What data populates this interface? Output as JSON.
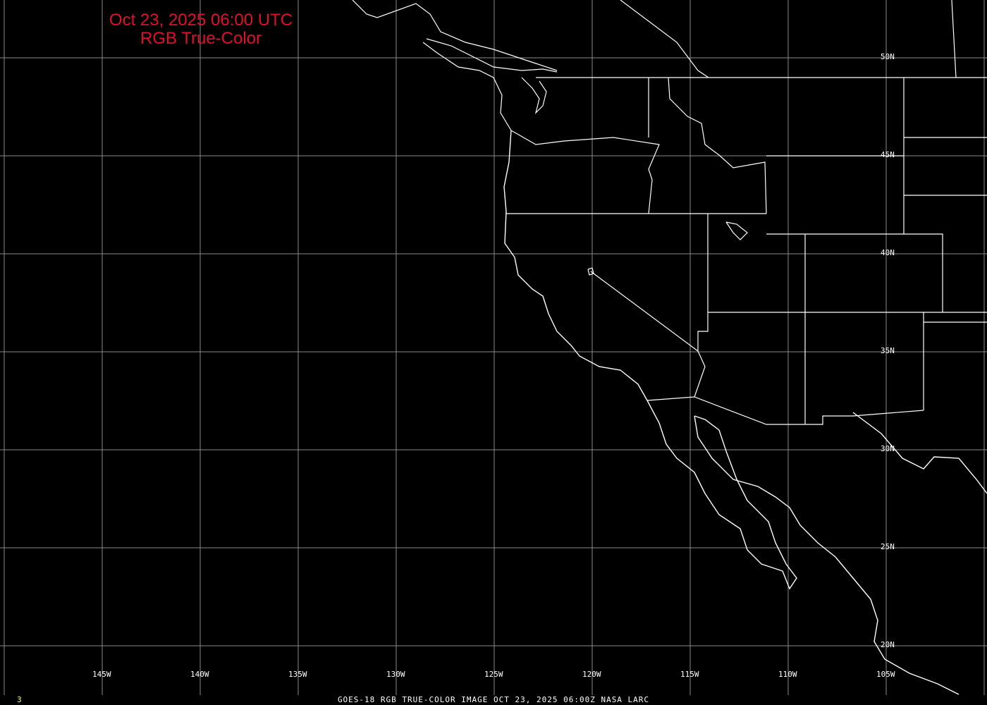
{
  "title": {
    "line1": "Oct 23, 2025 06:00 UTC",
    "line2": "RGB True-Color"
  },
  "title_color": "#e0102a",
  "lat_labels": [
    "50N",
    "45N",
    "40N",
    "35N",
    "30N",
    "25N",
    "20N"
  ],
  "lon_labels": [
    "145W",
    "140W",
    "135W",
    "130W",
    "125W",
    "120W",
    "115W",
    "110W",
    "105W"
  ],
  "footer": "GOES-18 RGB TRUE-COLOR IMAGE   OCT 23, 2025 06:00Z    NASA LARC",
  "frame_number": "3",
  "colors": {
    "background": "#000000",
    "grid": "#8a8a8a",
    "coastline": "#ffffff"
  }
}
